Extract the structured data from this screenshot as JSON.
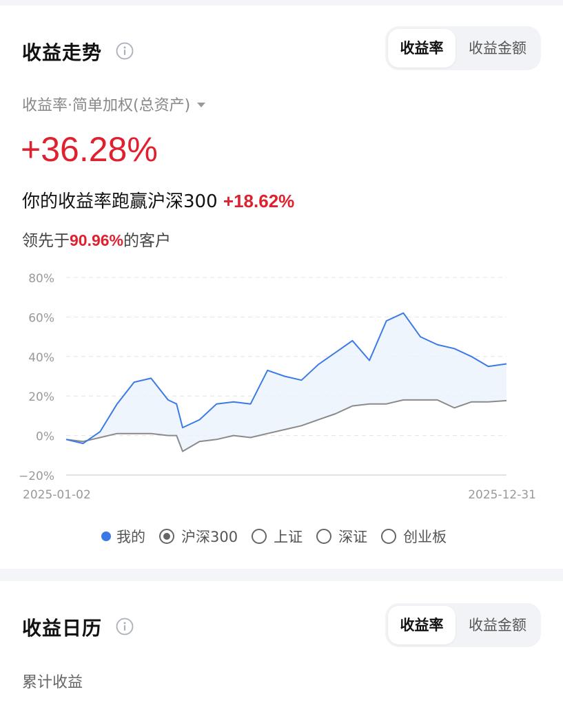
{
  "trend": {
    "title": "收益走势",
    "tabs": [
      {
        "label": "收益率",
        "active": true
      },
      {
        "label": "收益金额",
        "active": false
      }
    ],
    "metric_selector": "收益率·简单加权(总资产)",
    "return_value": "+36.28%",
    "compare_text": "你的收益率跑赢沪深300",
    "compare_value": "+18.62%",
    "lead_prefix": "领先于",
    "lead_value": "90.96%",
    "lead_suffix": "的客户",
    "legend": [
      {
        "label": "我的",
        "type": "dot"
      },
      {
        "label": "沪深300",
        "type": "radio",
        "selected": true
      },
      {
        "label": "上证",
        "type": "radio",
        "selected": false
      },
      {
        "label": "深证",
        "type": "radio",
        "selected": false
      },
      {
        "label": "创业板",
        "type": "radio",
        "selected": false
      }
    ]
  },
  "calendar": {
    "title": "收益日历",
    "tabs": [
      {
        "label": "收益率",
        "active": true
      },
      {
        "label": "收益金额",
        "active": false
      }
    ],
    "cumulative_label": "累计收益"
  },
  "colors": {
    "accent_red": "#e0202e",
    "mine_line": "#3b7ae6",
    "index_line": "#8a8a8a"
  },
  "chart_data": {
    "type": "line",
    "x": [
      "2025-01-02",
      "2025-01-16",
      "2025-01-30",
      "2025-02-13",
      "2025-02-27",
      "2025-03-13",
      "2025-03-27",
      "2025-04-03",
      "2025-04-08",
      "2025-04-22",
      "2025-05-06",
      "2025-05-20",
      "2025-06-03",
      "2025-06-17",
      "2025-07-01",
      "2025-07-15",
      "2025-07-29",
      "2025-08-12",
      "2025-08-26",
      "2025-09-09",
      "2025-09-23",
      "2025-10-07",
      "2025-10-21",
      "2025-11-04",
      "2025-11-18",
      "2025-12-02",
      "2025-12-16",
      "2025-12-31"
    ],
    "series": [
      {
        "name": "我的",
        "values": [
          -2,
          -4,
          2,
          16,
          27,
          29,
          18,
          16,
          4,
          8,
          16,
          17,
          16,
          33,
          30,
          28,
          36,
          42,
          48,
          38,
          58,
          62,
          50,
          46,
          44,
          40,
          35,
          36.28
        ]
      },
      {
        "name": "沪深300",
        "values": [
          -2,
          -3,
          -1,
          1,
          1,
          1,
          0,
          0,
          -8,
          -3,
          -2,
          0,
          -1,
          1,
          3,
          5,
          8,
          11,
          15,
          16,
          16,
          18,
          18,
          18,
          14,
          17,
          17,
          17.66
        ]
      }
    ],
    "yticks": [
      "80%",
      "60%",
      "40%",
      "20%",
      "0%",
      "−20%"
    ],
    "ylim": [
      -20,
      80
    ],
    "x_tick_labels": [
      "2025-01-02",
      "2025-12-31"
    ],
    "grid": true
  }
}
